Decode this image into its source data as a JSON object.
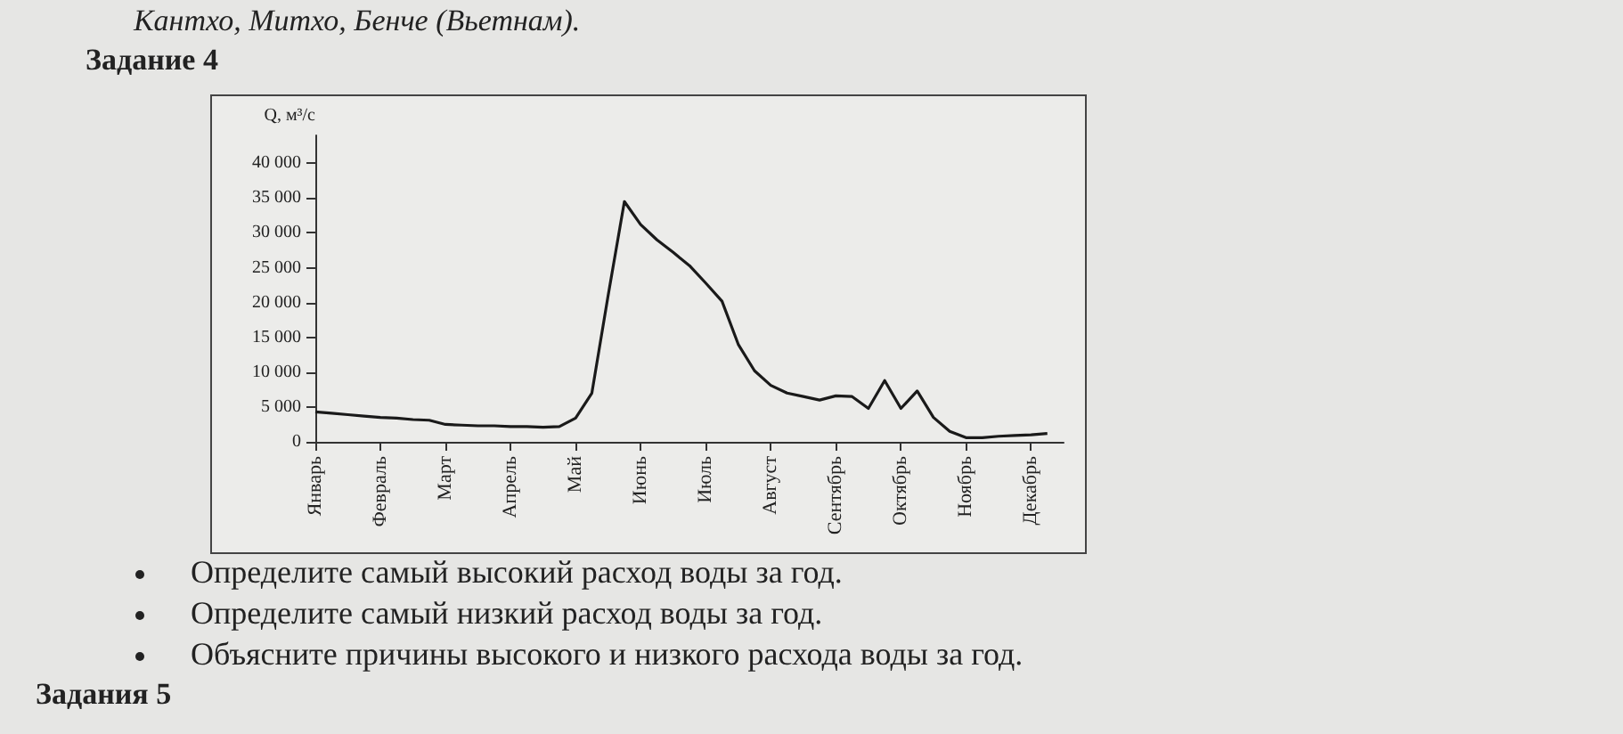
{
  "chart_data": {
    "type": "line",
    "title": "Задание 4",
    "ylabel": "Q, м³/с",
    "annotations": [
      "Кантхо, Митхо, Бенче (Вьетнам).",
      "Определите самый высокий расход воды за год.",
      "Определите самый низкий расход воды за год.",
      "Объясните причины высокого и низкого расхода воды за год.",
      "Задания 5"
    ],
    "categories": [
      "Январь",
      null,
      null,
      null,
      "Февраль",
      null,
      null,
      null,
      "Март",
      null,
      null,
      null,
      "Апрель",
      null,
      null,
      null,
      "Май",
      null,
      null,
      null,
      "Июнь",
      null,
      null,
      null,
      "Июль",
      null,
      null,
      null,
      "Август",
      null,
      null,
      null,
      "Сентябрь",
      null,
      null,
      null,
      "Октябрь",
      null,
      null,
      null,
      "Ноябрь",
      null,
      null,
      null,
      "Декабрь",
      null,
      null
    ],
    "series": [
      {
        "color": "#1a1a1a",
        "values": [
          4300,
          4100,
          3900,
          3700,
          3500,
          3400,
          3200,
          3100,
          2500,
          2400,
          2300,
          2300,
          2200,
          2200,
          2100,
          2200,
          3400,
          7000,
          21000,
          34500,
          31200,
          29000,
          27200,
          25300,
          22800,
          20200,
          14000,
          10200,
          8100,
          7000,
          6500,
          6000,
          6600,
          6500,
          4800,
          8800,
          4800,
          7300,
          3500,
          1500,
          600,
          600,
          800,
          900,
          1000,
          1200,
          null
        ]
      }
    ],
    "ylim": [
      0,
      44000
    ],
    "yticks": [
      {
        "value": 0,
        "label": "0"
      },
      {
        "value": 5000,
        "label": "5 000"
      },
      {
        "value": 10000,
        "label": "10 000"
      },
      {
        "value": 15000,
        "label": "15 000"
      },
      {
        "value": 20000,
        "label": "20 000"
      },
      {
        "value": 25000,
        "label": "25 000"
      },
      {
        "value": 30000,
        "label": "30 000"
      },
      {
        "value": 35000,
        "label": "35 000"
      },
      {
        "value": 40000,
        "label": "40 000"
      }
    ],
    "grid": false,
    "marker": "none",
    "line_style": "solid"
  }
}
